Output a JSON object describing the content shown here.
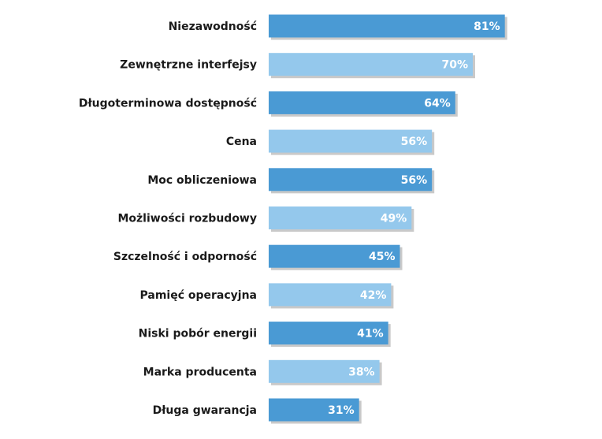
{
  "chart_data": {
    "type": "bar",
    "orientation": "horizontal",
    "categories": [
      "Niezawodność",
      "Zewnętrzne interfejsy",
      "Długoterminowa dostępność",
      "Cena",
      "Moc obliczeniowa",
      "Możliwości rozbudowy",
      "Szczelność i odporność",
      "Pamięć operacyjna",
      "Niski pobór energii",
      "Marka producenta",
      "Długa gwarancja"
    ],
    "values": [
      81,
      70,
      64,
      56,
      56,
      49,
      45,
      42,
      41,
      38,
      31
    ],
    "value_labels": [
      "81%",
      "70%",
      "64%",
      "56%",
      "56%",
      "49%",
      "45%",
      "42%",
      "41%",
      "38%",
      "31%"
    ],
    "unit": "%",
    "title": "",
    "xlabel": "",
    "ylabel": "",
    "xlim": [
      0,
      100
    ],
    "grid": false,
    "legend": "none",
    "colors": {
      "bar_dark": "#4a9ad4",
      "bar_light": "#94c8ec",
      "shadow": "#c9c9c9",
      "category_text": "#1a1a1a",
      "value_text": "#ffffff"
    }
  }
}
